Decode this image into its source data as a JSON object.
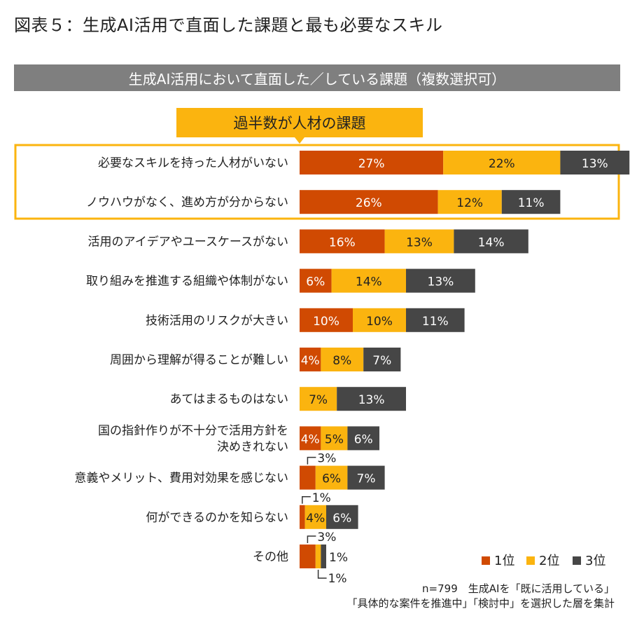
{
  "title": "図表５：生成AI活用で直面した課題と最も必要なスキル",
  "banner": "生成AI活用において直面した／している課題（複数選択可）",
  "callout": "過半数が人材の課題",
  "note": {
    "line1": "n=799　生成AIを「既に活用している」",
    "line2": "「具体的な案件を推進中」「検討中」を選択した層を集計"
  },
  "colors": {
    "rank1": "#d04a02",
    "rank2": "#fbb40f",
    "rank3": "#464646",
    "highlight_border": "#fbb40f",
    "banner": "#7f7f7f"
  },
  "chart_data": {
    "type": "bar",
    "orientation": "horizontal",
    "stacked": true,
    "unit": "%",
    "categories": [
      "必要なスキルを持った人材がいない",
      "ノウハウがなく、進め方が分からない",
      "活用のアイデアやユースケースがない",
      "取り組みを推進する組織や体制がない",
      "技術活用のリスクが大きい",
      "周囲から理解が得ることが難しい",
      "あてはまるものはない",
      "国の指針作りが不十分で活用方針を\n決めきれない",
      "意義やメリット、費用対効果を感じない",
      "何ができるのかを知らない",
      "その他"
    ],
    "series": [
      {
        "name": "1位",
        "values": [
          27,
          26,
          16,
          6,
          10,
          4,
          0,
          4,
          3,
          1,
          3
        ]
      },
      {
        "name": "2位",
        "values": [
          22,
          12,
          13,
          14,
          10,
          8,
          7,
          5,
          6,
          4,
          1
        ]
      },
      {
        "name": "3位",
        "values": [
          13,
          11,
          14,
          13,
          11,
          7,
          13,
          6,
          7,
          6,
          1
        ]
      }
    ],
    "value_labels": [
      [
        "27%",
        "22%",
        "13%"
      ],
      [
        "26%",
        "12%",
        "11%"
      ],
      [
        "16%",
        "13%",
        "14%"
      ],
      [
        "6%",
        "14%",
        "13%"
      ],
      [
        "10%",
        "10%",
        "11%"
      ],
      [
        "4%",
        "8%",
        "7%"
      ],
      [
        "",
        "7%",
        "13%"
      ],
      [
        "4%",
        "5%",
        "6%"
      ],
      [
        "3%",
        "6%",
        "7%"
      ],
      [
        "1%",
        "4%",
        "6%"
      ],
      [
        "3%",
        "1%",
        "1%"
      ]
    ],
    "highlighted_categories": [
      0,
      1
    ],
    "legend": [
      "1位",
      "2位",
      "3位"
    ],
    "legend_position": "bottom-right"
  }
}
